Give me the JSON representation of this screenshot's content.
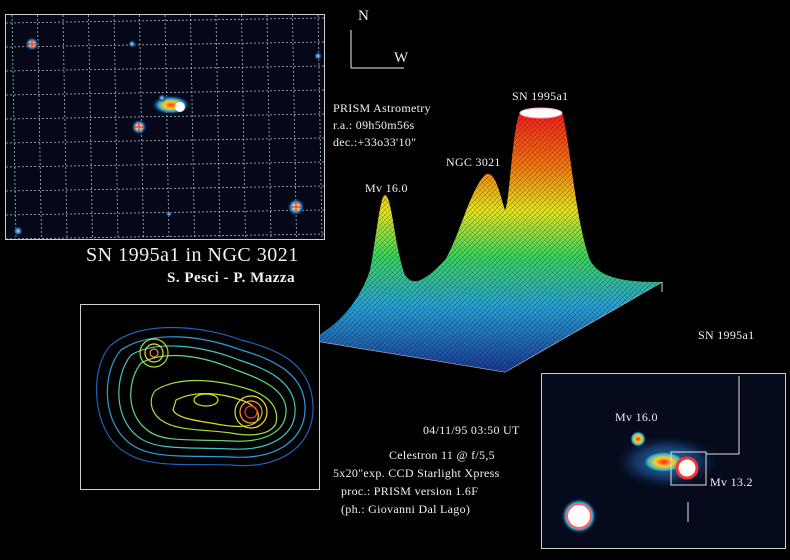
{
  "compass": {
    "north": "N",
    "west": "W"
  },
  "astrometry": {
    "heading": "PRISM  Astrometry",
    "ra": "r.a.:  09h50m56s",
    "dec": "dec.:+33o33'10\""
  },
  "peaks": {
    "sn": "SN  1995a1",
    "ngc": "NGC  3021",
    "mv16": "Mv  16.0"
  },
  "title": "SN  1995a1  in  NGC  3021",
  "authors": "S.  Pesci  -  P.  Mazza",
  "details": {
    "date": "04/11/95   03:50   UT",
    "telescope": "Celestron  11  @  f/5,5",
    "exposure": "5x20\"exp. CCD  Starlight  Xpress",
    "processing": "proc.:  PRISM  version  1.6F",
    "photographer": "(ph.:  Giovanni  Dal  Lago)"
  },
  "inset": {
    "sn_label": "SN  1995a1",
    "mv16": "Mv  16.0",
    "mv132": "Mv  13.2"
  },
  "colors": {
    "background": "#000000",
    "border": "#cfcfcf",
    "text": "#f2f2f2"
  }
}
